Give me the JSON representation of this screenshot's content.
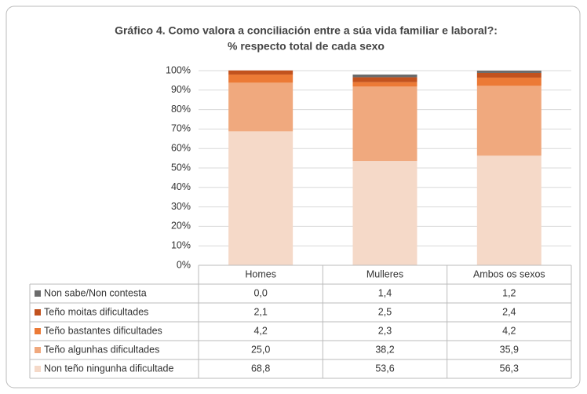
{
  "chart_data": {
    "type": "stacked_bar",
    "title": "Gráfico 4. Como valora a conciliación entre a súa vida familiar e laboral?:",
    "subtitle": "% respecto total de cada sexo",
    "categories": [
      "Homes",
      "Mulleres",
      "Ambos os sexos"
    ],
    "series": [
      {
        "name": "Non teño ningunha dificultade",
        "color": "#f5d9c8",
        "values": [
          68.8,
          53.6,
          56.3
        ],
        "value_labels": [
          "68,8",
          "53,6",
          "56,3"
        ]
      },
      {
        "name": "Teño algunhas dificultades",
        "color": "#f0a97e",
        "values": [
          25.0,
          38.2,
          35.9
        ],
        "value_labels": [
          "25,0",
          "38,2",
          "35,9"
        ]
      },
      {
        "name": "Teño bastantes dificultades",
        "color": "#ec7a36",
        "values": [
          4.2,
          2.3,
          4.2
        ],
        "value_labels": [
          "4,2",
          "2,3",
          "4,2"
        ]
      },
      {
        "name": "Teño moitas dificultades",
        "color": "#c2521e",
        "values": [
          2.1,
          2.5,
          2.4
        ],
        "value_labels": [
          "2,1",
          "2,5",
          "2,4"
        ]
      },
      {
        "name": "Non sabe/Non contesta",
        "color": "#6b6b6b",
        "values": [
          0.0,
          1.4,
          1.2
        ],
        "value_labels": [
          "0,0",
          "1,4",
          "1,2"
        ]
      }
    ],
    "ylim": [
      0,
      100
    ],
    "yticks": [
      {
        "value": 0,
        "label": "0%"
      },
      {
        "value": 10,
        "label": "10%"
      },
      {
        "value": 20,
        "label": "20%"
      },
      {
        "value": 30,
        "label": "30%"
      },
      {
        "value": 40,
        "label": "40%"
      },
      {
        "value": 50,
        "label": "50%"
      },
      {
        "value": 60,
        "label": "60%"
      },
      {
        "value": 70,
        "label": "70%"
      },
      {
        "value": 80,
        "label": "80%"
      },
      {
        "value": 90,
        "label": "90%"
      },
      {
        "value": 100,
        "label": "100%"
      }
    ],
    "grid": true
  }
}
